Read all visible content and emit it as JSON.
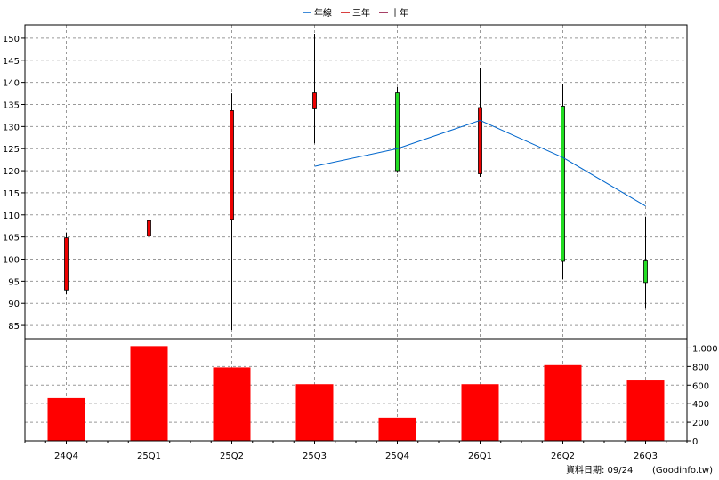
{
  "legend": {
    "items": [
      {
        "label": "年線",
        "color": "#0066cc"
      },
      {
        "label": "三年",
        "color": "#cc0000"
      },
      {
        "label": "十年",
        "color": "#880033"
      }
    ]
  },
  "footer": {
    "date_label": "資料日期: 09/24",
    "source": "(Goodinfo.tw)"
  },
  "chart_data": [
    {
      "type": "candlestick",
      "categories": [
        "24Q4",
        "25Q1",
        "25Q2",
        "25Q3",
        "25Q4",
        "26Q1",
        "26Q2",
        "26Q3"
      ],
      "ylim": [
        82,
        153
      ],
      "yticks": [
        85,
        90,
        95,
        100,
        105,
        110,
        115,
        120,
        125,
        130,
        135,
        140,
        145,
        150
      ],
      "grid": true,
      "candles": [
        {
          "open": 93,
          "close": 104.8,
          "high": 106,
          "low": 92,
          "color": "red"
        },
        {
          "open": 105.3,
          "close": 108.7,
          "high": 116.5,
          "low": 96.2,
          "color": "red"
        },
        {
          "open": 109,
          "close": 133.6,
          "high": 137.5,
          "low": 84,
          "color": "red"
        },
        {
          "open": 134,
          "close": 137.6,
          "high": 151,
          "low": 126.2,
          "color": "red"
        },
        {
          "open": 137.6,
          "close": 120,
          "high": 139,
          "low": 119.5,
          "color": "green"
        },
        {
          "open": 119.3,
          "close": 134.3,
          "high": 143.2,
          "low": 118.6,
          "color": "red"
        },
        {
          "open": 134.6,
          "close": 99.5,
          "high": 139.6,
          "low": 95.4,
          "color": "green"
        },
        {
          "open": 99.6,
          "close": 94.7,
          "high": 109.6,
          "low": 88.8,
          "color": "green"
        }
      ],
      "series": [
        {
          "name": "年線",
          "color": "#0066cc",
          "values": [
            null,
            null,
            null,
            121,
            125,
            131.4,
            123,
            112
          ]
        }
      ]
    },
    {
      "type": "bar",
      "categories": [
        "24Q4",
        "25Q1",
        "25Q2",
        "25Q3",
        "25Q4",
        "26Q1",
        "26Q2",
        "26Q3"
      ],
      "values": [
        460,
        1020,
        790,
        610,
        250,
        610,
        815,
        650
      ],
      "ylim": [
        0,
        1100
      ],
      "yticks": [
        0,
        200,
        400,
        600,
        800,
        1000
      ],
      "ytick_labels": [
        "0",
        "200",
        "400",
        "600",
        "800",
        "1,000"
      ],
      "grid": true,
      "bar_color": "#ff0000"
    }
  ]
}
